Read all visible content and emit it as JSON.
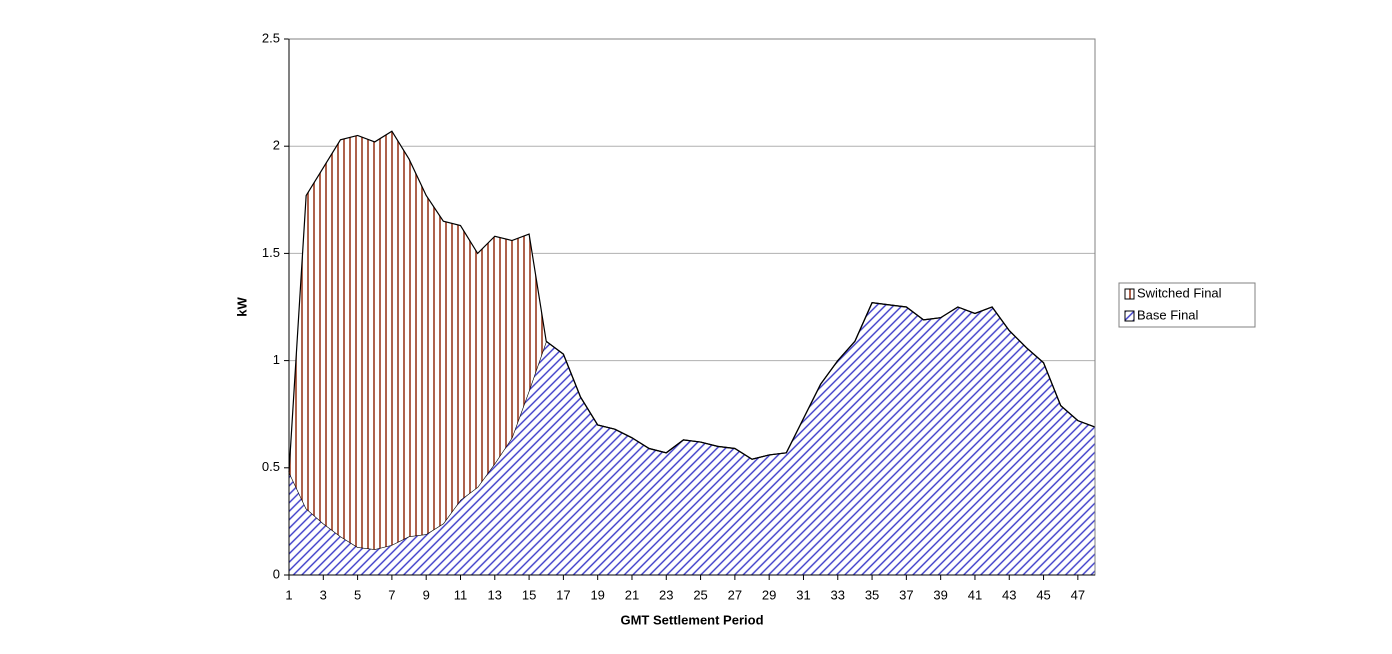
{
  "chart_data": {
    "type": "stacked-area",
    "x_label": "GMT Settlement Period",
    "y_label": "kW",
    "x": [
      1,
      2,
      3,
      4,
      5,
      6,
      7,
      8,
      9,
      10,
      11,
      12,
      13,
      14,
      15,
      16,
      17,
      18,
      19,
      20,
      21,
      22,
      23,
      24,
      25,
      26,
      27,
      28,
      29,
      30,
      31,
      32,
      33,
      34,
      35,
      36,
      37,
      38,
      39,
      40,
      41,
      42,
      43,
      44,
      45,
      46,
      47,
      48
    ],
    "xlim": [
      1,
      48
    ],
    "xticks": [
      1,
      3,
      5,
      7,
      9,
      11,
      13,
      15,
      17,
      19,
      21,
      23,
      25,
      27,
      29,
      31,
      33,
      35,
      37,
      39,
      41,
      43,
      45,
      47
    ],
    "ylim": [
      0,
      2.5
    ],
    "yticks": [
      0,
      0.5,
      1,
      1.5,
      2,
      2.5
    ],
    "grid": true,
    "legend": "right",
    "series": [
      {
        "name": "Switched Final",
        "color": "#9a3a1e",
        "values": [
          0,
          1.46,
          1.66,
          1.85,
          1.92,
          1.9,
          1.93,
          1.76,
          1.58,
          1.41,
          1.28,
          1.09,
          1.06,
          0.92,
          0.73,
          0,
          0,
          0,
          0,
          0,
          0,
          0,
          0,
          0,
          0,
          0,
          0,
          0,
          0,
          0,
          0,
          0,
          0,
          0,
          0,
          0,
          0,
          0,
          0,
          0,
          0,
          0,
          0,
          0,
          0,
          0,
          0,
          0
        ]
      },
      {
        "name": "Base Final",
        "color": "#3a3ac8",
        "values": [
          0.48,
          0.31,
          0.24,
          0.18,
          0.13,
          0.12,
          0.14,
          0.18,
          0.19,
          0.24,
          0.35,
          0.41,
          0.52,
          0.64,
          0.86,
          1.09,
          1.03,
          0.83,
          0.7,
          0.68,
          0.64,
          0.59,
          0.57,
          0.63,
          0.62,
          0.6,
          0.59,
          0.54,
          0.56,
          0.57,
          0.73,
          0.89,
          1.0,
          1.09,
          1.27,
          1.26,
          1.25,
          1.19,
          1.2,
          1.25,
          1.22,
          1.25,
          1.14,
          1.06,
          0.99,
          0.79,
          0.72,
          0.69
        ]
      }
    ]
  }
}
